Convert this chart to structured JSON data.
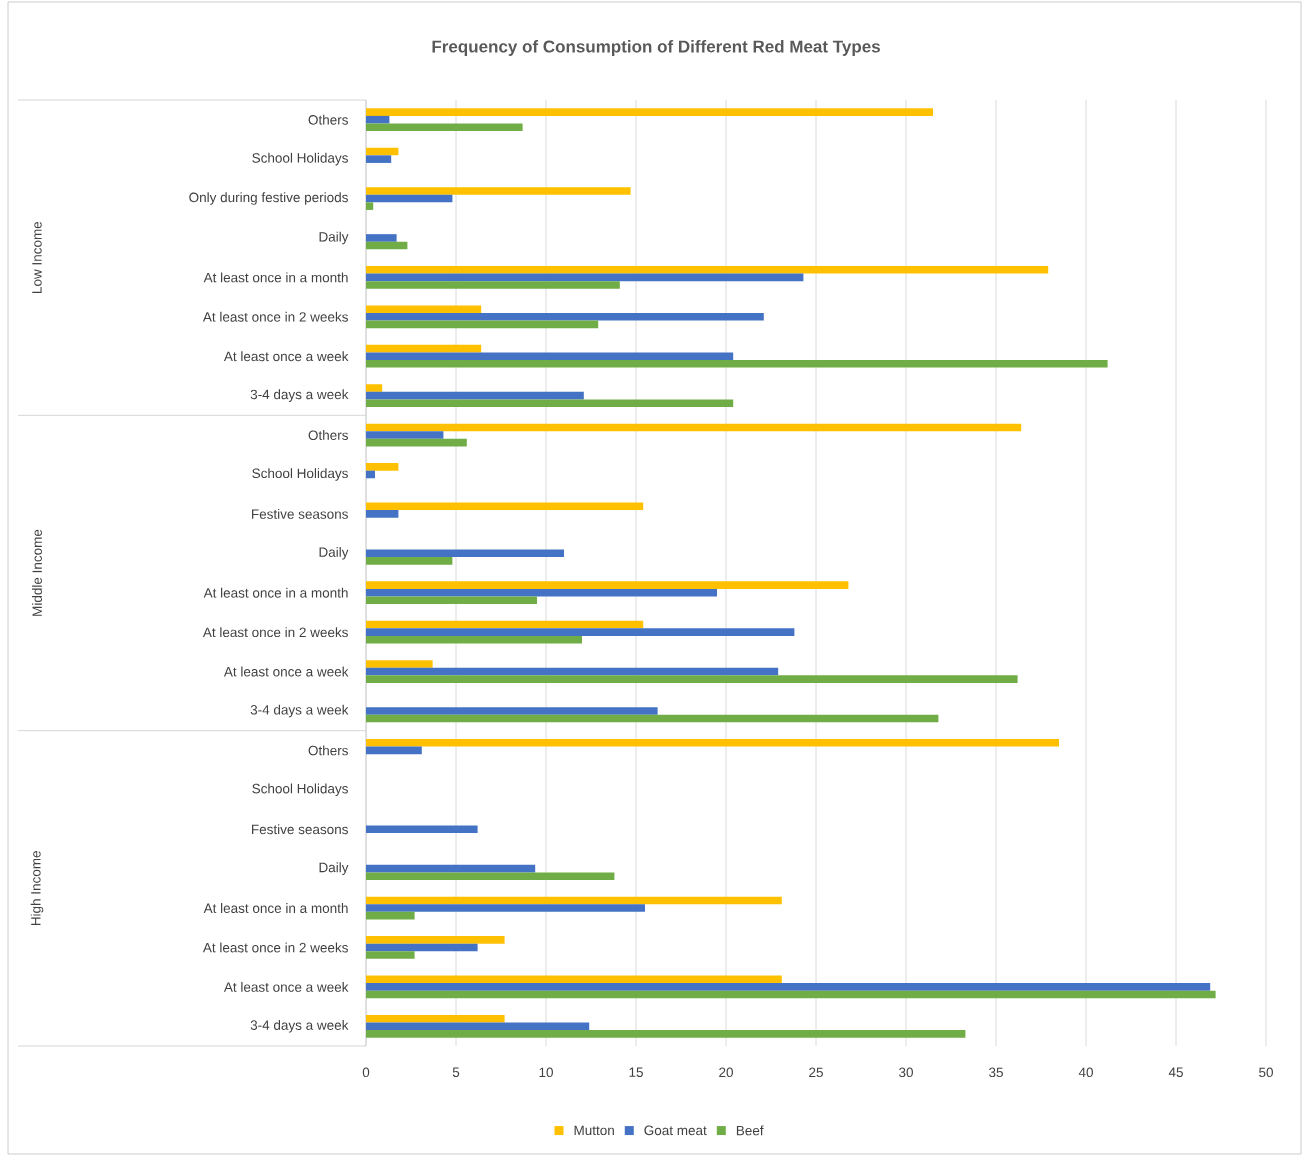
{
  "chart_data": {
    "type": "bar",
    "orientation": "horizontal",
    "title": "Frequency of Consumption of Different Red Meat Types",
    "categories": [
      "Others",
      "School Holidays",
      "Only during festive periods",
      "Daily",
      "At least once in a month",
      "At least once in 2 weeks",
      "At least once a week",
      "3-4 days a week",
      "Others",
      "School Holidays",
      "Festive seasons",
      "Daily",
      "At least once in a month",
      "At least once in 2 weeks",
      "At least once a week",
      "3-4 days a week",
      "Others",
      "School Holidays",
      "Festive seasons",
      "Daily",
      "At least once in a month",
      "At least once in 2 weeks",
      "At least once a week",
      "3-4 days a week"
    ],
    "annotations": [
      "Low Income",
      "Middle Income",
      "High Income"
    ],
    "series": [
      {
        "name": "Mutton",
        "color": "#ffc000",
        "values": [
          31.5,
          1.8,
          14.7,
          null,
          37.9,
          6.4,
          6.4,
          0.9,
          36.4,
          1.8,
          15.4,
          null,
          26.8,
          15.4,
          3.7,
          null,
          38.5,
          null,
          null,
          null,
          23.1,
          7.7,
          23.1,
          7.7
        ]
      },
      {
        "name": "Goat meat",
        "color": "#4472c4",
        "values": [
          1.3,
          1.4,
          4.8,
          1.7,
          24.3,
          22.1,
          20.4,
          12.1,
          4.3,
          0.5,
          1.8,
          11.0,
          19.5,
          23.8,
          22.9,
          16.2,
          3.1,
          null,
          6.2,
          9.4,
          15.5,
          6.2,
          46.9,
          12.4
        ]
      },
      {
        "name": "Beef",
        "color": "#70ad47",
        "values": [
          8.7,
          null,
          0.4,
          2.3,
          14.1,
          12.9,
          41.2,
          20.4,
          5.6,
          null,
          null,
          4.8,
          9.5,
          12.0,
          36.2,
          31.8,
          null,
          null,
          null,
          13.8,
          2.7,
          2.7,
          47.2,
          33.3
        ]
      }
    ],
    "xlim": [
      0,
      50
    ],
    "xticks": [
      0,
      5,
      10,
      15,
      20,
      25,
      30,
      35,
      40,
      45,
      50
    ],
    "grid": "x",
    "legend": "bottom"
  }
}
